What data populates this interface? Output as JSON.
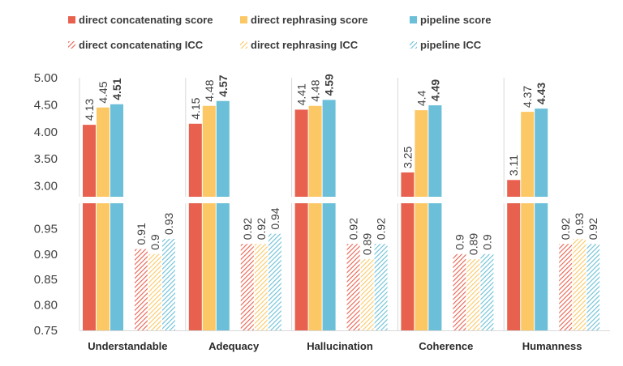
{
  "chart_data": {
    "type": "bar",
    "categories": [
      "Understandable",
      "Adequacy",
      "Hallucination",
      "Coherence",
      "Humanness"
    ],
    "series": [
      {
        "name": "direct concatenating score",
        "group": "score",
        "color": "#e8614f",
        "pattern": "solid",
        "values": [
          4.13,
          4.15,
          4.41,
          3.25,
          3.11
        ],
        "labels": [
          "4.13",
          "4.15",
          "4.41",
          "3.25",
          "3.11"
        ]
      },
      {
        "name": "direct rephrasing score",
        "group": "score",
        "color": "#fcc866",
        "pattern": "solid",
        "values": [
          4.45,
          4.48,
          4.48,
          4.4,
          4.37
        ],
        "labels": [
          "4.45",
          "4.48",
          "4.48",
          "4.4",
          "4.37"
        ]
      },
      {
        "name": "pipeline score",
        "group": "score",
        "color": "#6bbfd8",
        "pattern": "solid",
        "values": [
          4.51,
          4.57,
          4.59,
          4.49,
          4.43
        ],
        "labels": [
          "4.51",
          "4.57",
          "4.59",
          "4.49",
          "4.43"
        ],
        "bold_labels": true
      },
      {
        "name": "direct concatenating ICC",
        "group": "icc",
        "color": "#e8614f",
        "pattern": "hatch",
        "values": [
          0.91,
          0.92,
          0.92,
          0.9,
          0.92
        ],
        "labels": [
          "0.91",
          "0.92",
          "0.92",
          "0.9",
          "0.92"
        ]
      },
      {
        "name": "direct rephrasing ICC",
        "group": "icc",
        "color": "#fcc866",
        "pattern": "hatch",
        "values": [
          0.9,
          0.92,
          0.89,
          0.89,
          0.93
        ],
        "labels": [
          "0.9",
          "0.92",
          "0.89",
          "0.89",
          "0.93"
        ]
      },
      {
        "name": "pipeline ICC",
        "group": "icc",
        "color": "#6bbfd8",
        "pattern": "hatch",
        "values": [
          0.93,
          0.94,
          0.92,
          0.9,
          0.92
        ],
        "labels": [
          "0.93",
          "0.94",
          "0.92",
          "0.9",
          "0.92"
        ]
      }
    ],
    "upper_axis": {
      "ticks": [
        "3.00",
        "3.50",
        "4.00",
        "4.50",
        "5.00"
      ],
      "tick_values": [
        3.0,
        3.5,
        4.0,
        4.5,
        5.0
      ],
      "range": [
        2.8,
        5.0
      ]
    },
    "lower_axis": {
      "ticks": [
        "0.75",
        "0.80",
        "0.85",
        "0.90",
        "0.95"
      ],
      "tick_values": [
        0.75,
        0.8,
        0.85,
        0.9,
        0.95
      ],
      "range": [
        0.75,
        1.0
      ]
    },
    "broken_axis": true,
    "grid": false,
    "legend_placement": "top"
  }
}
